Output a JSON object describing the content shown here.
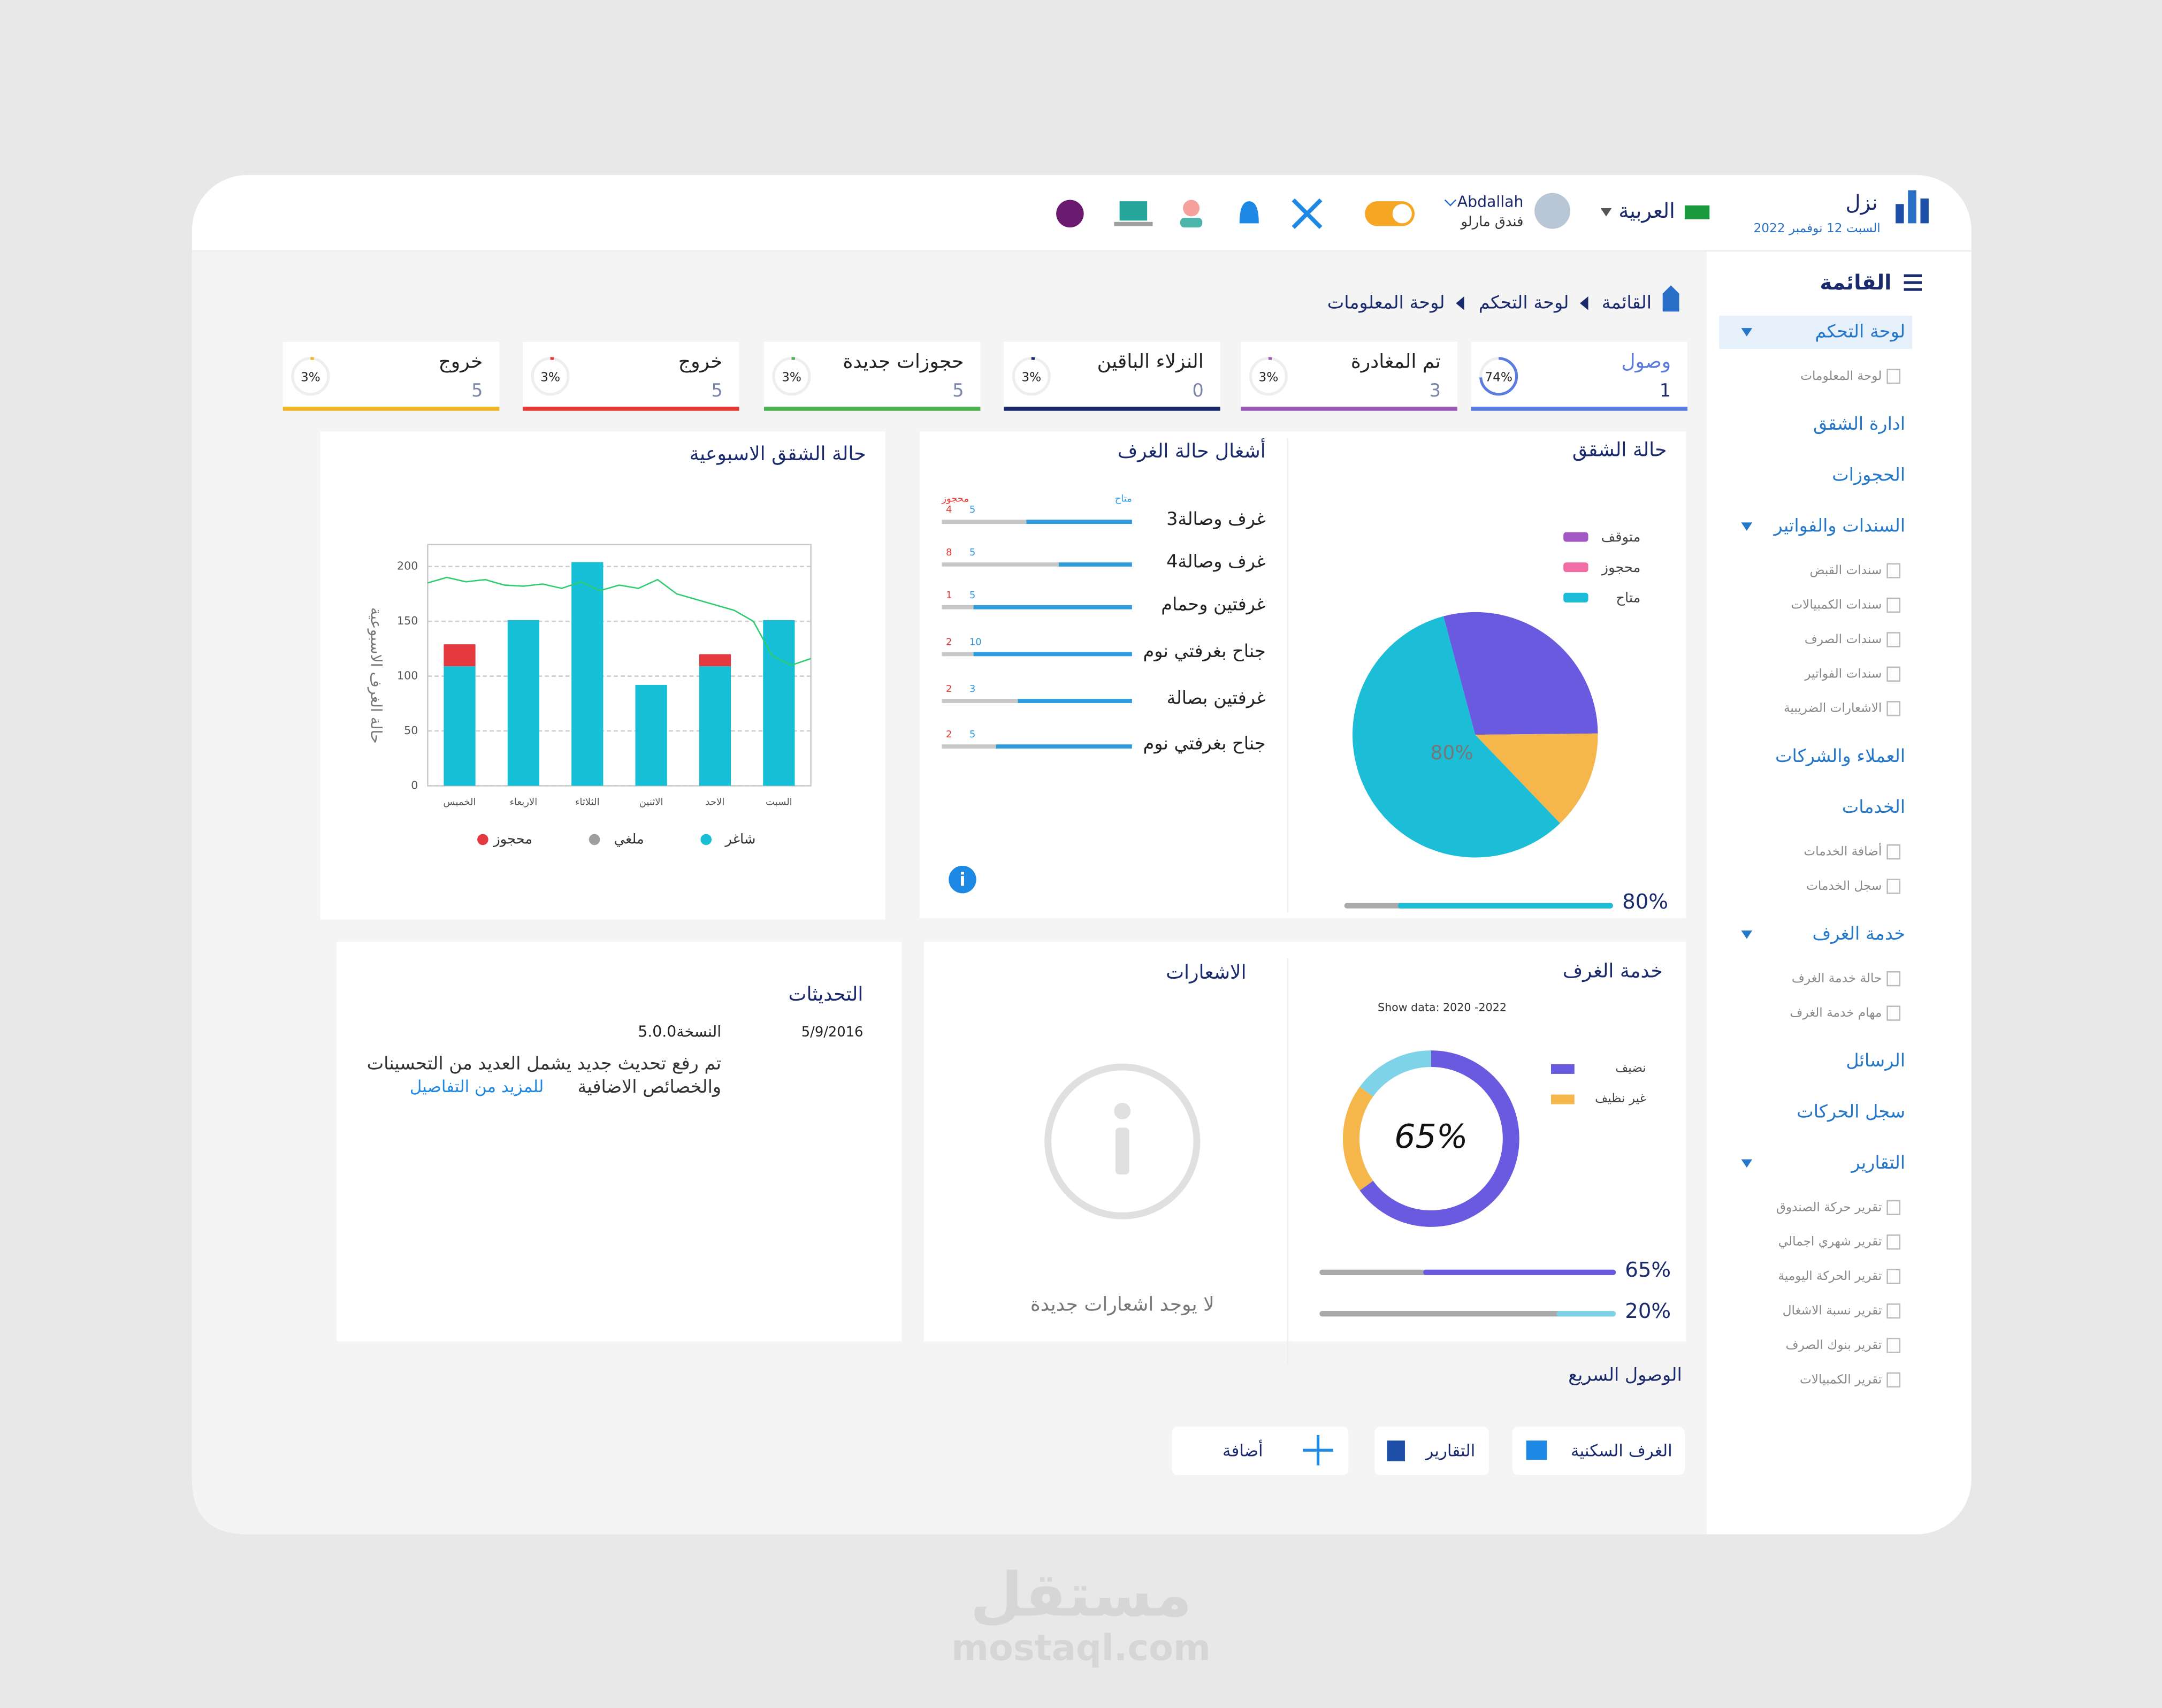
{
  "header": {
    "brand": "نزل",
    "date": "السبت 12 نوفمبر 2022",
    "language": "العربية",
    "user": "Abdallah",
    "hotel": "فندق مارلو"
  },
  "breadcrumb": [
    "القائمة",
    "لوحة التحكم",
    "لوحة المعلومات"
  ],
  "sidebar": {
    "title": "القائمة",
    "items": [
      {
        "label": "لوحة التحكم",
        "active": true,
        "caret": true,
        "children": [
          "لوحة المعلومات"
        ]
      },
      {
        "label": "ادارة الشقق",
        "children": []
      },
      {
        "label": "الحجوزات",
        "children": []
      },
      {
        "label": "السندات والفواتير",
        "caret": true,
        "children": [
          "سندات القبض",
          "سندات الكمبيالات",
          "سندات الصرف",
          "سندات الفواتير",
          "الاشعارات الضريبية"
        ]
      },
      {
        "label": "العملاء والشركات",
        "children": []
      },
      {
        "label": "الخدمات",
        "children": [
          "أضافة الخدمات",
          "سجل الخدمات"
        ]
      },
      {
        "label": "خدمة الغرف",
        "caret": true,
        "children": [
          "حالة خدمة الغرف",
          "مهام خدمة الغرف"
        ]
      },
      {
        "label": "الرسائل",
        "children": []
      },
      {
        "label": "سجل الحركات",
        "children": []
      },
      {
        "label": "التقارير",
        "caret": true,
        "children": [
          "تقرير حركة الصندوق",
          "تقرير شهري اجمالي",
          "تقرير الحركة اليومية",
          "تقرير نسبة الاشغال",
          "تقرير بنوك الصرف",
          "تقرير الكمبيالات"
        ]
      }
    ]
  },
  "stat_cards": [
    {
      "label": "وصول",
      "value": 1,
      "percent": 74,
      "percent_label": "74%",
      "color": "#5a7be0"
    },
    {
      "label": "تم المغادرة",
      "value": 3,
      "percent": 3,
      "percent_label": "3%",
      "color": "#9b59b6"
    },
    {
      "label": "النزلاء الباقين",
      "value": 0,
      "percent": 3,
      "percent_label": "3%",
      "color": "#1a2a6c"
    },
    {
      "label": "حجوزات جديدة",
      "value": 5,
      "percent": 3,
      "percent_label": "3%",
      "color": "#4caf50"
    },
    {
      "label": "خروج",
      "value": 5,
      "percent": 3,
      "percent_label": "3%",
      "color": "#e53935"
    },
    {
      "label": "خروج",
      "value": 5,
      "percent": 3,
      "percent_label": "3%",
      "color": "#f0b429"
    }
  ],
  "chart_data": [
    {
      "type": "pie",
      "title": "حالة الشقق",
      "categories": [
        "متوقف",
        "محجوز",
        "متاح"
      ],
      "values": [
        29,
        13,
        58
      ],
      "colors": [
        "#6a5adf",
        "#f5b64c",
        "#1bbdd7"
      ],
      "legend_colors": [
        "#a259c4",
        "#f06da6",
        "#1bbdd7"
      ],
      "center_label": "80%",
      "progress": {
        "value": 80,
        "label": "80%",
        "color": "#1bbdd7"
      }
    },
    {
      "type": "progress_list",
      "title": "أشغال حالة الغرف",
      "categories": [
        "3غرف وصالة",
        "4غرف وصالة",
        "غرفتين وحمام",
        "جناح بغرفتي نوم",
        "غرفتين بصالة",
        "جناح بغرفتي نوم"
      ],
      "series": [
        {
          "name": "محجوز",
          "color": "#e53935",
          "values": [
            4,
            8,
            1,
            2,
            2,
            2
          ]
        },
        {
          "name": "متاح",
          "color": "#2d9be0",
          "values": [
            5,
            5,
            5,
            10,
            3,
            5
          ]
        }
      ]
    },
    {
      "type": "bar",
      "title": "حالة الشقق الاسبوعية",
      "y_label": "حالة الغرف الاسبوعية",
      "categories": [
        "الخميس",
        "الاربعاء",
        "الثلاثاء",
        "الاثنين",
        "الاحد",
        "السبت"
      ],
      "series": [
        {
          "name": "شاغر",
          "color": "#17bfd6",
          "values": [
            109,
            151,
            204,
            92,
            109,
            151
          ]
        },
        {
          "name": "ملغي",
          "color": "#9e9e9e",
          "values": [
            0,
            0,
            0,
            0,
            0,
            0
          ]
        },
        {
          "name": "محجوز",
          "color": "#e53940",
          "values": [
            20,
            0,
            0,
            0,
            11,
            0
          ]
        }
      ],
      "line": {
        "color": "#2ecc71",
        "values": [
          185,
          190,
          186,
          188,
          183,
          182,
          184,
          180,
          186,
          178,
          183,
          180,
          188,
          175,
          170,
          165,
          160,
          150,
          118,
          110,
          116
        ]
      },
      "ylim": [
        0,
        220
      ],
      "yticks": [
        0,
        50,
        100,
        150,
        200
      ],
      "grid": true
    },
    {
      "type": "donut",
      "title": "خدمة الغرف",
      "subtitle": "Show data: 2020 -2022",
      "categories": [
        "نضيف",
        "غير نظيف",
        null
      ],
      "values": [
        65,
        20,
        15
      ],
      "colors": [
        "#6a5adf",
        "#f5b64c",
        "#7fd3e8"
      ],
      "center_label": "65%",
      "progress": [
        {
          "value": 65,
          "label": "65%",
          "color": "#6a5adf"
        },
        {
          "value": 20,
          "label": "20%",
          "color": "#7fd3e8"
        }
      ]
    }
  ],
  "notifications": {
    "title": "الاشعارات",
    "empty": "لا يوجد اشعارات جديدة"
  },
  "updates": {
    "title": "التحديثات",
    "date": "5/9/2016",
    "version": "النسخة5.0.0",
    "text_lines": [
      "تم رفع تحديث جديد يشمل العديد من التحسينات",
      "والخصائص الاضافية"
    ],
    "link": "للمزيد من التفاصيل"
  },
  "quick_access": {
    "title": "الوصول السريع",
    "buttons": [
      "الغرف السكنية",
      "التقارير",
      "أضافة"
    ]
  },
  "watermark": {
    "arabic": "مستقل",
    "latin": "mostaql.com"
  }
}
